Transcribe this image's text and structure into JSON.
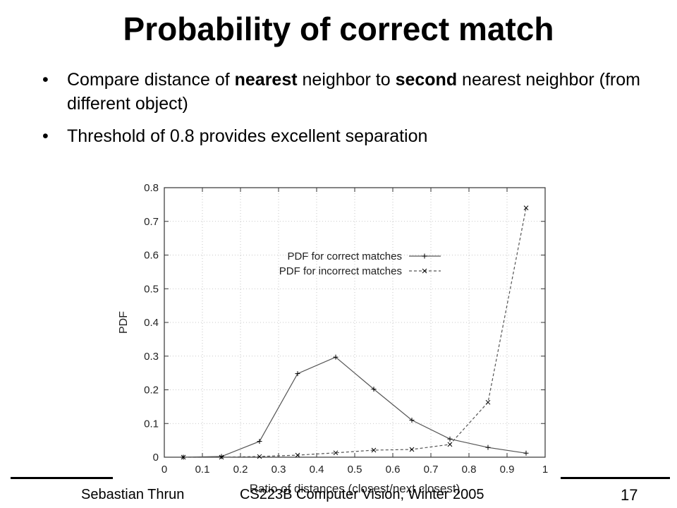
{
  "slide": {
    "title": "Probability of correct match",
    "bullets": [
      {
        "segments": [
          {
            "text": "Compare distance of ",
            "bold": false
          },
          {
            "text": "nearest",
            "bold": true
          },
          {
            "text": " neighbor to ",
            "bold": false
          },
          {
            "text": "second",
            "bold": true
          },
          {
            "text": " nearest neighbor (from different object)",
            "bold": false
          }
        ]
      },
      {
        "segments": [
          {
            "text": "Threshold of 0.8 provides excellent separation",
            "bold": false
          }
        ]
      }
    ],
    "bullet_glyph": "•",
    "footer": {
      "author": "Sebastian Thrun",
      "course": "CS223B Computer Vision, Winter 2005",
      "page_number": "17"
    }
  },
  "chart_data": {
    "type": "line",
    "title": "",
    "xlabel": "Ratio of distances (closest/next closest)",
    "ylabel": "PDF",
    "xlim": [
      0,
      1
    ],
    "ylim": [
      0,
      0.8
    ],
    "xticks": [
      "0",
      "0.1",
      "0.2",
      "0.3",
      "0.4",
      "0.5",
      "0.6",
      "0.7",
      "0.8",
      "0.9",
      "1"
    ],
    "yticks": [
      "0",
      "0.1",
      "0.2",
      "0.3",
      "0.4",
      "0.5",
      "0.6",
      "0.7",
      "0.8"
    ],
    "grid": true,
    "legend_position": "upper-middle",
    "series": [
      {
        "name": "PDF for correct matches",
        "marker": "+",
        "line_style": "solid",
        "color": "#000000",
        "x": [
          0.05,
          0.15,
          0.25,
          0.35,
          0.45,
          0.55,
          0.65,
          0.75,
          0.85,
          0.95
        ],
        "values": [
          0.0,
          0.002,
          0.047,
          0.248,
          0.297,
          0.202,
          0.11,
          0.054,
          0.029,
          0.012
        ]
      },
      {
        "name": "PDF for incorrect matches",
        "marker": "x",
        "line_style": "dashed",
        "color": "#000000",
        "x": [
          0.05,
          0.15,
          0.25,
          0.35,
          0.45,
          0.55,
          0.65,
          0.75,
          0.85,
          0.95
        ],
        "values": [
          0.0,
          0.0,
          0.002,
          0.006,
          0.013,
          0.021,
          0.023,
          0.038,
          0.163,
          0.74
        ]
      }
    ]
  }
}
